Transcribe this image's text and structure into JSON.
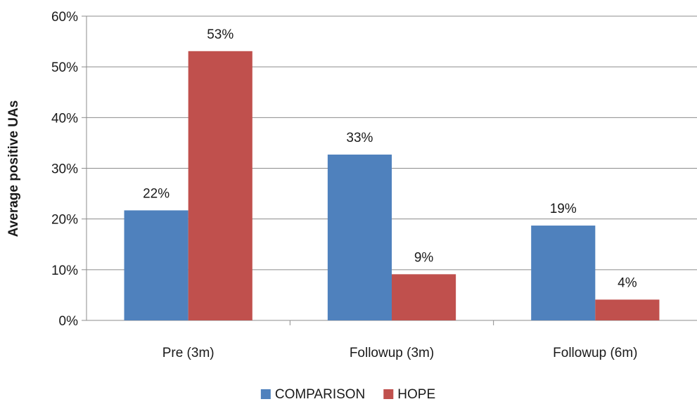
{
  "chart_data": {
    "type": "bar",
    "title": "",
    "xlabel": "",
    "ylabel": "Average positive UAs",
    "ylim": [
      0,
      60
    ],
    "y_ticks": [
      "0%",
      "10%",
      "20%",
      "30%",
      "40%",
      "50%",
      "60%"
    ],
    "grid": true,
    "legend_position": "bottom",
    "categories": [
      "Pre (3m)",
      "Followup (3m)",
      "Followup (6m)"
    ],
    "series": [
      {
        "name": "COMPARISON",
        "color": "#4f81bd",
        "values": [
          21.7,
          32.7,
          18.7
        ],
        "labels": [
          "22%",
          "33%",
          "19%"
        ]
      },
      {
        "name": "HOPE",
        "color": "#c0504d",
        "values": [
          53.1,
          9.1,
          4.1
        ],
        "labels": [
          "53%",
          "9%",
          "4%"
        ]
      }
    ]
  }
}
